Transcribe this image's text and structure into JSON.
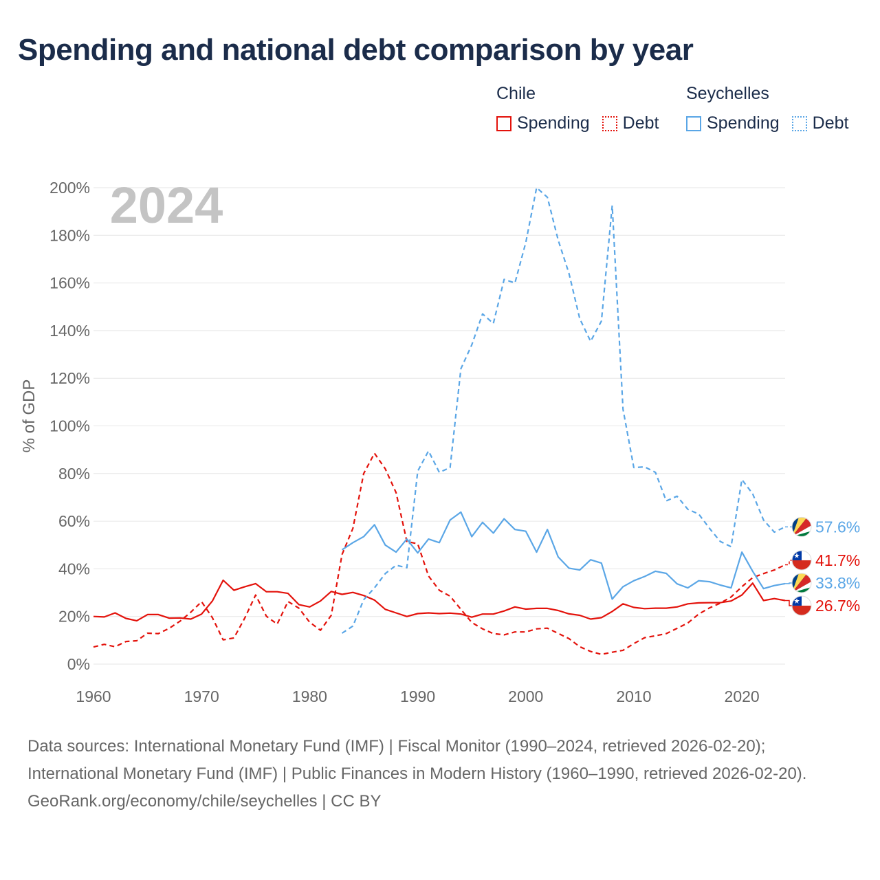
{
  "title": "Spending and national debt comparison by year",
  "legend": {
    "groups": [
      {
        "name": "Chile",
        "items": [
          {
            "label": "Spending",
            "style": "solid",
            "color": "#e3120b"
          },
          {
            "label": "Debt",
            "style": "dotted",
            "color": "#e3120b"
          }
        ]
      },
      {
        "name": "Seychelles",
        "items": [
          {
            "label": "Spending",
            "style": "solid",
            "color": "#5aa6e6"
          },
          {
            "label": "Debt",
            "style": "dotted",
            "color": "#5aa6e6"
          }
        ]
      }
    ]
  },
  "colors": {
    "chile": "#e3120b",
    "seychelles": "#5aa6e6",
    "grid": "#e6e6e6",
    "axis_text": "#666666",
    "year_watermark": "#c4c4c4"
  },
  "chart_data": {
    "type": "line",
    "year_label": "2024",
    "ylabel": "% of GDP",
    "xlim": [
      1960,
      2024
    ],
    "ylim": [
      0,
      200
    ],
    "x_ticks": [
      1960,
      1970,
      1980,
      1990,
      2000,
      2010,
      2020
    ],
    "y_ticks": [
      0,
      20,
      40,
      60,
      80,
      100,
      120,
      140,
      160,
      180,
      200
    ],
    "y_tick_labels": [
      "0%",
      "20%",
      "40%",
      "60%",
      "80%",
      "100%",
      "120%",
      "140%",
      "160%",
      "180%",
      "200%"
    ],
    "x": [
      1960,
      1961,
      1962,
      1963,
      1964,
      1965,
      1966,
      1967,
      1968,
      1969,
      1970,
      1971,
      1972,
      1973,
      1974,
      1975,
      1976,
      1977,
      1978,
      1979,
      1980,
      1981,
      1982,
      1983,
      1984,
      1985,
      1986,
      1987,
      1988,
      1989,
      1990,
      1991,
      1992,
      1993,
      1994,
      1995,
      1996,
      1997,
      1998,
      1999,
      2000,
      2001,
      2002,
      2003,
      2004,
      2005,
      2006,
      2007,
      2008,
      2009,
      2010,
      2011,
      2012,
      2013,
      2014,
      2015,
      2016,
      2017,
      2018,
      2019,
      2020,
      2021,
      2022,
      2023,
      2024
    ],
    "series": [
      {
        "name": "Chile Spending",
        "country": "chile",
        "style": "solid",
        "end_label": "26.7%",
        "values": [
          20,
          19.8,
          21.5,
          19.2,
          18.2,
          20.8,
          20.8,
          19.3,
          19.4,
          18.9,
          21,
          26.5,
          35.2,
          31,
          32.5,
          33.8,
          30.4,
          30.4,
          29.7,
          25,
          24,
          26.5,
          30.5,
          29.3,
          30.1,
          28.8,
          26.9,
          23,
          21.5,
          20,
          21.2,
          21.5,
          21.2,
          21.4,
          21,
          19.7,
          21,
          21,
          22.3,
          24,
          23.1,
          23.4,
          23.4,
          22.5,
          21.1,
          20.5,
          18.9,
          19.5,
          22.1,
          25.3,
          23.8,
          23.3,
          23.5,
          23.5,
          24,
          25.3,
          25.7,
          25.8,
          25.8,
          26.5,
          29,
          34,
          26.7,
          27.5,
          26.7
        ]
      },
      {
        "name": "Chile Debt",
        "country": "chile",
        "style": "dashed",
        "end_label": "41.7%",
        "values": [
          7.2,
          8.3,
          7.3,
          9.5,
          9.8,
          13,
          12.8,
          15,
          18,
          21.8,
          26.2,
          19.5,
          10.2,
          11,
          19.4,
          29,
          20.1,
          16.8,
          26.3,
          23.5,
          17.6,
          14.2,
          20.5,
          46,
          57,
          80,
          88.5,
          82,
          72,
          51.5,
          50.5,
          37,
          31,
          28.5,
          23,
          17.5,
          14.8,
          12.8,
          12.3,
          13.5,
          13.5,
          14.8,
          15.1,
          12.9,
          10.7,
          7.3,
          5.3,
          4.1,
          5,
          5.8,
          8.6,
          11.1,
          11.9,
          12.8,
          15,
          17.3,
          21,
          23.6,
          25.6,
          28.2,
          32.5,
          36.3,
          38,
          39.5,
          41.7
        ]
      },
      {
        "name": "Seychelles Spending",
        "country": "seychelles",
        "style": "solid",
        "end_label": "33.8%",
        "values": [
          null,
          null,
          null,
          null,
          null,
          null,
          null,
          null,
          null,
          null,
          null,
          null,
          null,
          null,
          null,
          null,
          null,
          null,
          null,
          null,
          null,
          null,
          null,
          48,
          51,
          53.5,
          58.5,
          50,
          47,
          52.5,
          46.7,
          52.5,
          51,
          60.5,
          63.8,
          53.5,
          59.5,
          55,
          61,
          56.5,
          55.8,
          47,
          56.5,
          45,
          40.3,
          39.5,
          43.8,
          42.4,
          27.3,
          32.5,
          35,
          36.8,
          39,
          38.1,
          33.7,
          32,
          35,
          34.6,
          33.2,
          32,
          47,
          39,
          31.7,
          33,
          33.8
        ]
      },
      {
        "name": "Seychelles Debt",
        "country": "seychelles",
        "style": "dashed",
        "end_label": "57.6%",
        "values": [
          null,
          null,
          null,
          null,
          null,
          null,
          null,
          null,
          null,
          null,
          null,
          null,
          null,
          null,
          null,
          null,
          null,
          null,
          null,
          null,
          null,
          null,
          null,
          13,
          16,
          27,
          32,
          38,
          41.5,
          40.5,
          81,
          89.5,
          80.5,
          82.5,
          124,
          134,
          147,
          143,
          161.5,
          160,
          177,
          200,
          196,
          178,
          164,
          145,
          135.5,
          144,
          192.5,
          107,
          82.5,
          82.8,
          80.5,
          68.5,
          70.5,
          65,
          63,
          57,
          51.5,
          49.3,
          77.5,
          71.5,
          60.5,
          55.4,
          57.6
        ]
      }
    ]
  },
  "footer": {
    "sources": "Data sources: International Monetary Fund (IMF) | Fiscal Monitor (1990–2024, retrieved 2026-02-20); International Monetary Fund (IMF) | Public Finances in Modern History (1960–1990, retrieved 2026-02-20).",
    "credit": "GeoRank.org/economy/chile/seychelles | CC BY"
  }
}
